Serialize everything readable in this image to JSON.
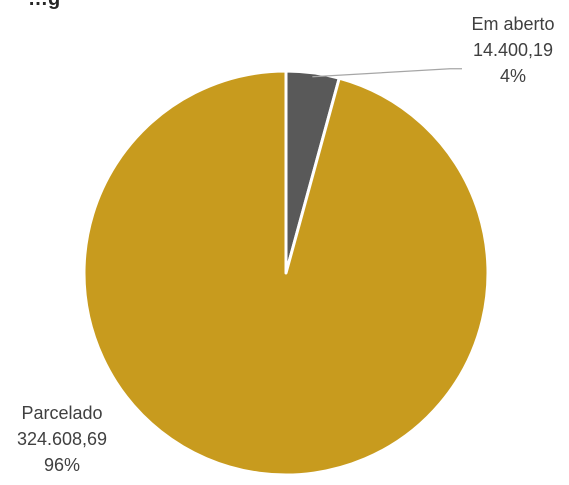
{
  "chart_data": {
    "type": "pie",
    "title": "…g",
    "slices": [
      {
        "name": "Em aberto",
        "value_label": "14.400,19",
        "percent_label": "4%",
        "value": 14400.19,
        "color": "#595959"
      },
      {
        "name": "Parcelado",
        "value_label": "324.608,69",
        "percent_label": "96%",
        "value": 324608.69,
        "color": "#C89B1E"
      }
    ],
    "legend": "none",
    "start_angle_deg": 0,
    "direction": "clockwise"
  }
}
